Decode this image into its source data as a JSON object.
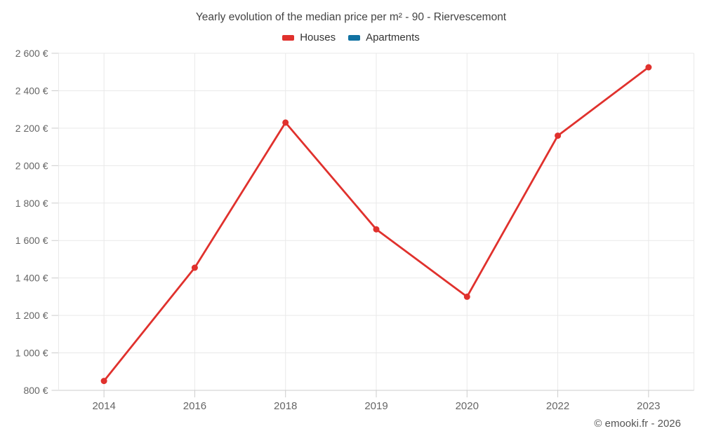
{
  "header": {
    "title": "Yearly evolution of the median price per m² - 90 - Riervescemont",
    "legend": [
      {
        "label": "Houses",
        "color": "#e0312d"
      },
      {
        "label": "Apartments",
        "color": "#1172a2"
      }
    ]
  },
  "footer": {
    "credit": "© emooki.fr - 2026"
  },
  "colors": {
    "houses": "#e0312d",
    "apartments": "#1172a2",
    "grid": "#e9e9e9",
    "axis": "#cccccc",
    "tick": "#cccccc",
    "axis_text": "#666666",
    "title_text": "#444444"
  },
  "chart_data": {
    "type": "line",
    "title": "Yearly evolution of the median price per m² - 90 - Riervescemont",
    "categories": [
      "2014",
      "2016",
      "2018",
      "2019",
      "2020",
      "2022",
      "2023"
    ],
    "series": [
      {
        "name": "Houses",
        "color": "#e0312d",
        "values": [
          850,
          1455,
          2230,
          1660,
          1300,
          2160,
          2525
        ]
      },
      {
        "name": "Apartments",
        "color": "#1172a2",
        "values": []
      }
    ],
    "xlabel": "",
    "ylabel": "",
    "y_unit": "€",
    "ylim": [
      800,
      2600
    ],
    "y_tick_step": 200,
    "y_tick_labels": [
      "800 €",
      "1 000 €",
      "1 200 €",
      "1 400 €",
      "1 600 €",
      "1 800 €",
      "2 000 €",
      "2 200 €",
      "2 400 €",
      "2 600 €"
    ],
    "grid": true,
    "legend_position": "top",
    "marker": "circle"
  }
}
